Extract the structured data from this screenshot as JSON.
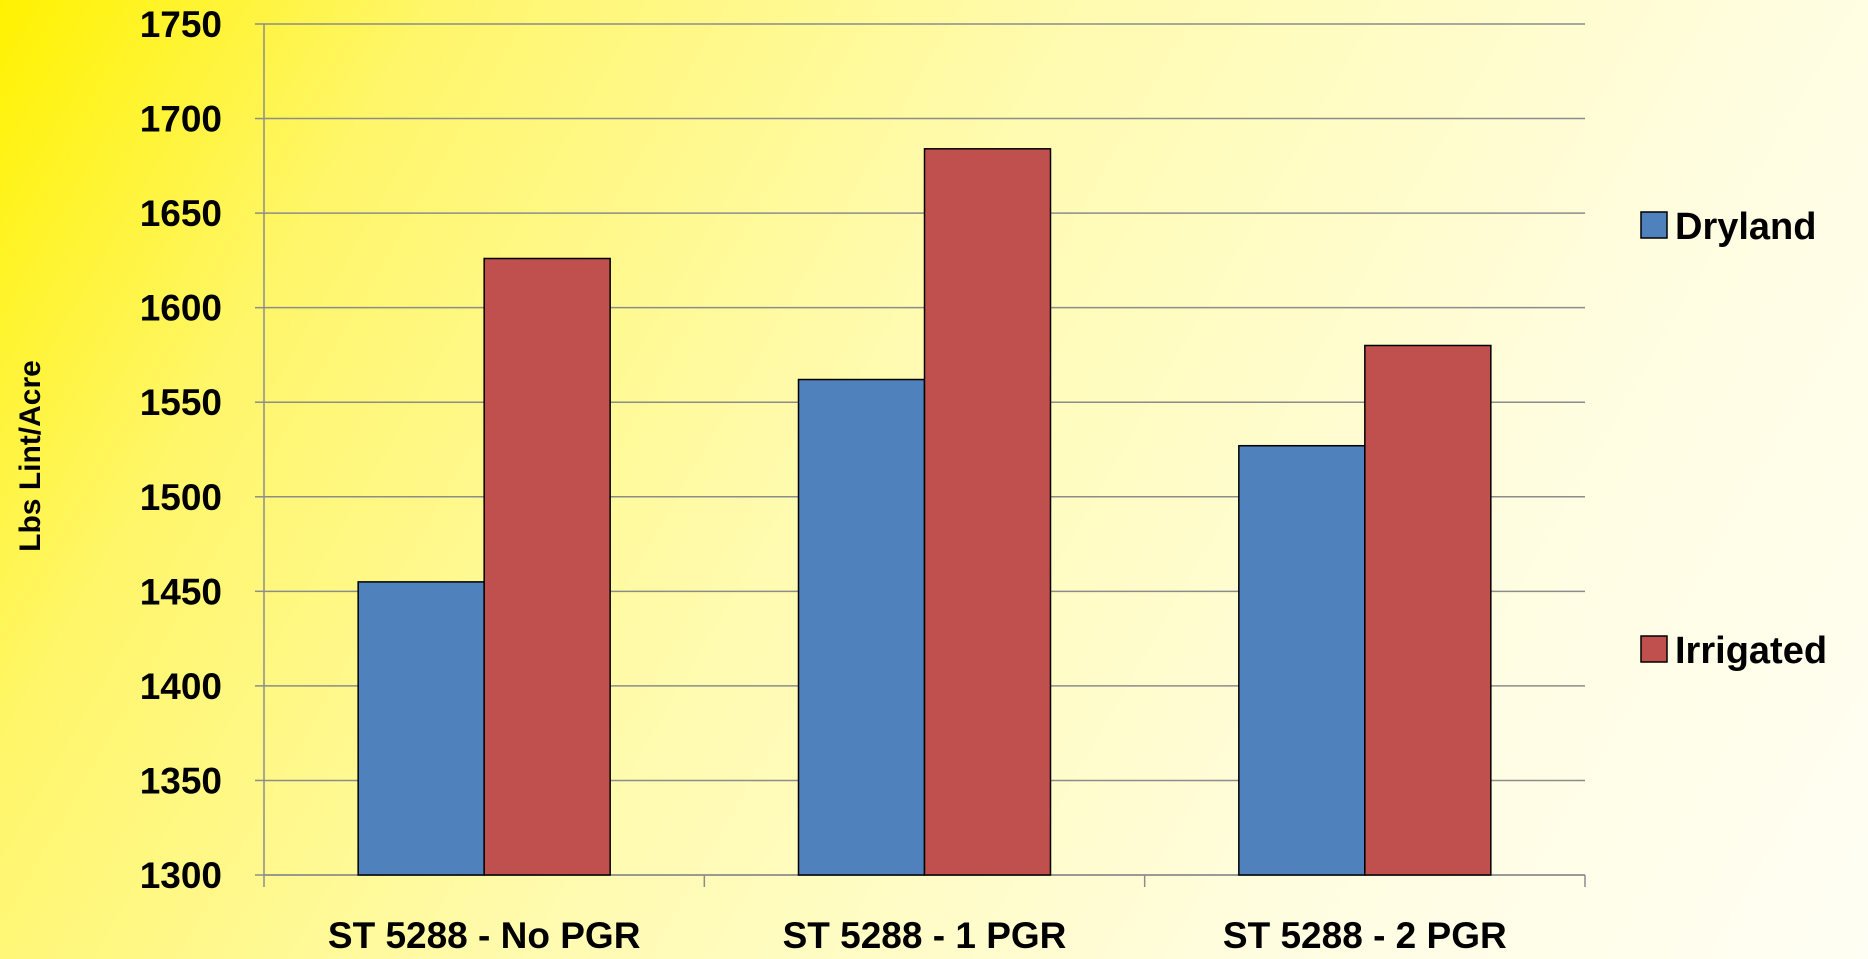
{
  "chart_data": {
    "type": "bar",
    "title": "",
    "xlabel": "",
    "ylabel": "Lbs Lint/Acre",
    "ylim": [
      1300,
      1750
    ],
    "ytick_step": 50,
    "grid": true,
    "legend_position": "right",
    "categories": [
      "ST 5288 - No PGR",
      "ST 5288 - 1 PGR",
      "ST 5288 - 2 PGR"
    ],
    "series": [
      {
        "name": "Dryland",
        "color": "#4f81bd",
        "values": [
          1455,
          1562,
          1527
        ]
      },
      {
        "name": "Irrigated",
        "color": "#c0504d",
        "values": [
          1626,
          1684,
          1580
        ]
      }
    ]
  }
}
